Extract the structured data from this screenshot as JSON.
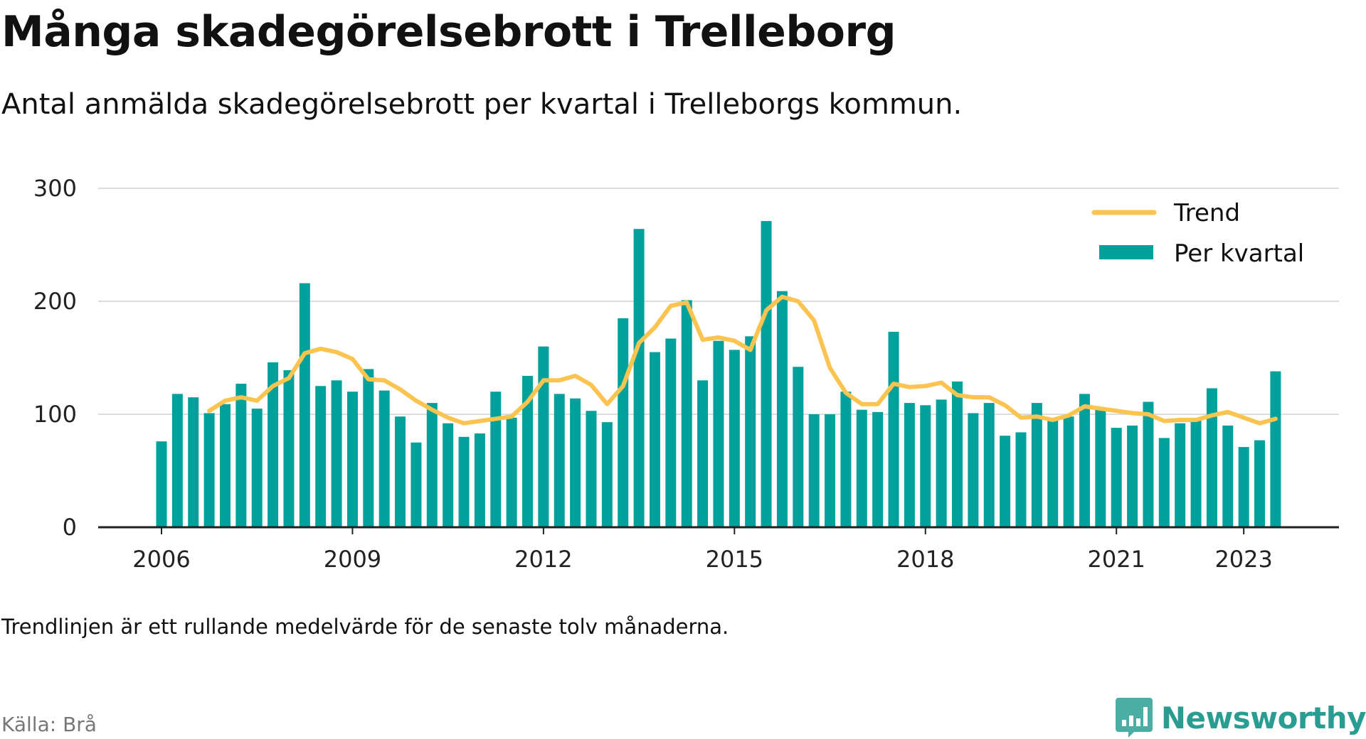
{
  "title": "Många skadegörelsebrott i Trelleborg",
  "subtitle": "Antal anmälda skadegörelsebrott per kvartal i Trelleborgs kommun.",
  "note": "Trendlinjen är ett rullande medelvärde för de senaste tolv månaderna.",
  "source": "Källa: Brå",
  "brand": {
    "name": "Newsworthy",
    "icon": "newsworthy-logo-icon"
  },
  "colors": {
    "bars": "#00a19a",
    "trend": "#fbc34f",
    "grid": "#dddddd",
    "axis": "#222222",
    "brand": "#2a9d92"
  },
  "chart_data": {
    "type": "bar",
    "x": [
      "2006 Q1",
      "2006 Q2",
      "2006 Q3",
      "2006 Q4",
      "2007 Q1",
      "2007 Q2",
      "2007 Q3",
      "2007 Q4",
      "2008 Q1",
      "2008 Q2",
      "2008 Q3",
      "2008 Q4",
      "2009 Q1",
      "2009 Q2",
      "2009 Q3",
      "2009 Q4",
      "2010 Q1",
      "2010 Q2",
      "2010 Q3",
      "2010 Q4",
      "2011 Q1",
      "2011 Q2",
      "2011 Q3",
      "2011 Q4",
      "2012 Q1",
      "2012 Q2",
      "2012 Q3",
      "2012 Q4",
      "2013 Q1",
      "2013 Q2",
      "2013 Q3",
      "2013 Q4",
      "2014 Q1",
      "2014 Q2",
      "2014 Q3",
      "2014 Q4",
      "2015 Q1",
      "2015 Q2",
      "2015 Q3",
      "2015 Q4",
      "2016 Q1",
      "2016 Q2",
      "2016 Q3",
      "2016 Q4",
      "2017 Q1",
      "2017 Q2",
      "2017 Q3",
      "2017 Q4",
      "2018 Q1",
      "2018 Q2",
      "2018 Q3",
      "2018 Q4",
      "2019 Q1",
      "2019 Q2",
      "2019 Q3",
      "2019 Q4",
      "2020 Q1",
      "2020 Q2",
      "2020 Q3",
      "2020 Q4",
      "2021 Q1",
      "2021 Q2",
      "2021 Q3",
      "2021 Q4",
      "2022 Q1",
      "2022 Q2",
      "2022 Q3",
      "2022 Q4",
      "2023 Q1",
      "2023 Q2",
      "2023 Q3"
    ],
    "series": [
      {
        "name": "Per kvartal",
        "type": "bar",
        "values": [
          76,
          118,
          115,
          101,
          109,
          127,
          105,
          146,
          139,
          216,
          125,
          130,
          120,
          140,
          121,
          98,
          75,
          110,
          92,
          80,
          83,
          120,
          97,
          134,
          160,
          118,
          114,
          103,
          93,
          185,
          264,
          155,
          167,
          201,
          130,
          165,
          157,
          169,
          271,
          209,
          142,
          100,
          100,
          120,
          104,
          102,
          173,
          110,
          108,
          113,
          129,
          101,
          110,
          81,
          84,
          110,
          95,
          98,
          118,
          104,
          88,
          90,
          111,
          79,
          92,
          96,
          123,
          90,
          71,
          77,
          138
        ]
      },
      {
        "name": "Trend",
        "type": "line",
        "values": [
          null,
          null,
          null,
          103,
          112,
          115,
          112,
          125,
          132,
          154,
          158,
          155,
          149,
          131,
          130,
          122,
          112,
          104,
          97,
          92,
          94,
          96,
          98,
          111,
          130,
          130,
          134,
          126,
          109,
          125,
          163,
          177,
          196,
          199,
          166,
          168,
          165,
          157,
          192,
          204,
          200,
          183,
          141,
          119,
          109,
          109,
          127,
          124,
          125,
          128,
          117,
          115,
          115,
          108,
          97,
          98,
          95,
          99,
          107,
          105,
          103,
          101,
          100,
          94,
          95,
          95,
          99,
          102,
          97,
          92,
          96
        ]
      }
    ],
    "xticks": [
      "2006",
      "2009",
      "2012",
      "2015",
      "2018",
      "2021",
      "2023"
    ],
    "yticks": [
      0,
      100,
      200,
      300
    ],
    "ylim": [
      0,
      300
    ],
    "grid": true,
    "legend_position": "top-right"
  }
}
